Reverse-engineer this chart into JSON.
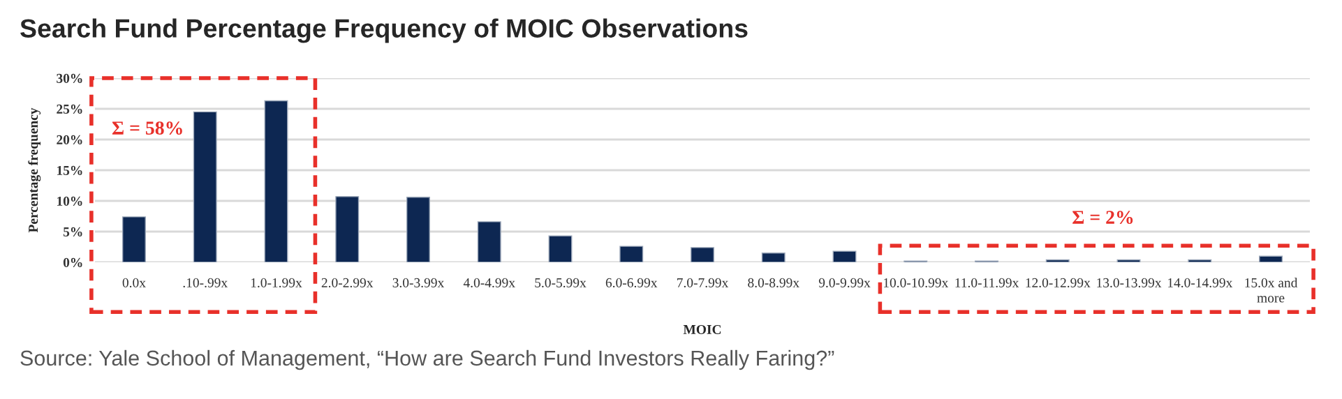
{
  "chart_data": {
    "type": "bar",
    "title": "Search Fund Percentage Frequency of MOIC Observations",
    "xlabel": "MOIC",
    "ylabel": "Percentage frequency",
    "categories": [
      "0.0x",
      ".10-.99x",
      "1.0-1.99x",
      "2.0-2.99x",
      "3.0-3.99x",
      "4.0-4.99x",
      "5.0-5.99x",
      "6.0-6.99x",
      "7.0-7.99x",
      "8.0-8.99x",
      "9.0-9.99x",
      "10.0-10.99x",
      "11.0-11.99x",
      "12.0-12.99x",
      "13.0-13.99x",
      "14.0-14.99x",
      "15.0x and\nmore"
    ],
    "values": [
      7.4,
      24.5,
      26.3,
      10.7,
      10.6,
      6.6,
      4.3,
      2.6,
      2.4,
      1.5,
      1.8,
      0.2,
      0.2,
      0.4,
      0.4,
      0.4,
      1.0
    ],
    "color": "#0d2752",
    "ylim": [
      0,
      30
    ],
    "yticks": [
      {
        "value": 0,
        "label": "0%"
      },
      {
        "value": 5,
        "label": "5%"
      },
      {
        "value": 10,
        "label": "10%"
      },
      {
        "value": 15,
        "label": "15%"
      },
      {
        "value": 20,
        "label": "20%"
      },
      {
        "value": 25,
        "label": "25%"
      },
      {
        "value": 30,
        "label": "30%"
      }
    ],
    "grid": "y",
    "annotations": [
      "Σ = 58%",
      "Σ = 2%",
      "Source: Yale School of Management, “How are Search Fund Investors Really Faring?”"
    ]
  }
}
